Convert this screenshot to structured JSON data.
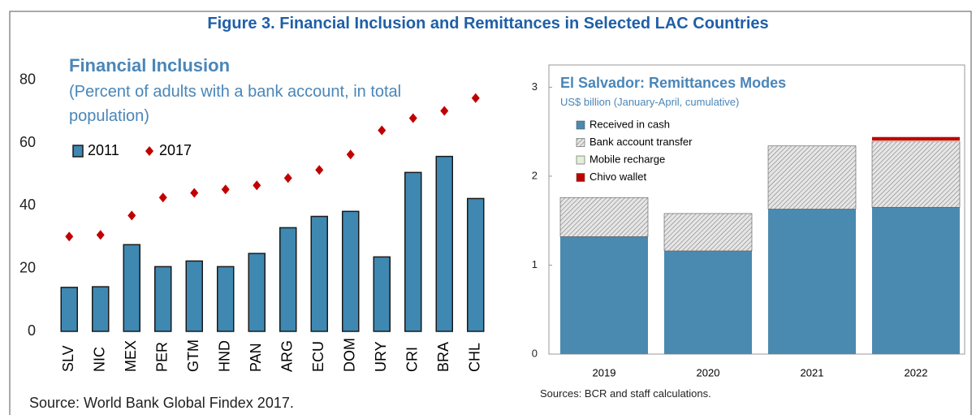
{
  "figure_title": "Figure 3. Financial Inclusion and Remittances in Selected LAC Countries",
  "chart_data": [
    {
      "type": "bar",
      "title": "Financial Inclusion",
      "subtitle": "(Percent of adults with a bank account, in total population)",
      "categories": [
        "SLV",
        "NIC",
        "MEX",
        "PER",
        "GTM",
        "HND",
        "PAN",
        "ARG",
        "ECU",
        "DOM",
        "URY",
        "CRI",
        "BRA",
        "CHL"
      ],
      "series": [
        {
          "name": "2011",
          "kind": "bar",
          "color": "#3e88b2",
          "values": [
            14,
            14.2,
            27.6,
            20.6,
            22.4,
            20.6,
            24.8,
            33,
            36.6,
            38.2,
            23.7,
            50.6,
            55.7,
            42.3
          ]
        },
        {
          "name": "2017",
          "kind": "marker",
          "color": "#c00000",
          "values": [
            30.2,
            30.7,
            36.9,
            42.6,
            44.1,
            45.2,
            46.5,
            48.8,
            51.4,
            56.3,
            64,
            67.9,
            70.2,
            74.3
          ]
        }
      ],
      "ylim": [
        0,
        90
      ],
      "yticks": [
        0,
        20,
        40,
        60,
        80
      ],
      "source": "Source: World Bank Global Findex 2017."
    },
    {
      "type": "stacked_bar",
      "title": "El Salvador: Remittances Modes",
      "subtitle": "US$ billion (January-April, cumulative)",
      "categories": [
        "2019",
        "2020",
        "2021",
        "2022"
      ],
      "series": [
        {
          "name": "Received in cash",
          "color": "#4a8ab0",
          "values": [
            1.32,
            1.16,
            1.63,
            1.65
          ]
        },
        {
          "name": "Bank account transfer",
          "color": "#c8c8c8",
          "hatch": true,
          "values": [
            0.44,
            0.42,
            0.71,
            0.74
          ]
        },
        {
          "name": "Mobile recharge",
          "color": "#e2efd9",
          "values": [
            0,
            0,
            0,
            0.01
          ]
        },
        {
          "name": "Chivo wallet",
          "color": "#c00000",
          "values": [
            0,
            0,
            0,
            0.04
          ]
        }
      ],
      "ylim": [
        0,
        3.25
      ],
      "yticks": [
        0,
        1,
        2,
        3
      ],
      "source": "Sources: BCR and staff calculations."
    }
  ]
}
